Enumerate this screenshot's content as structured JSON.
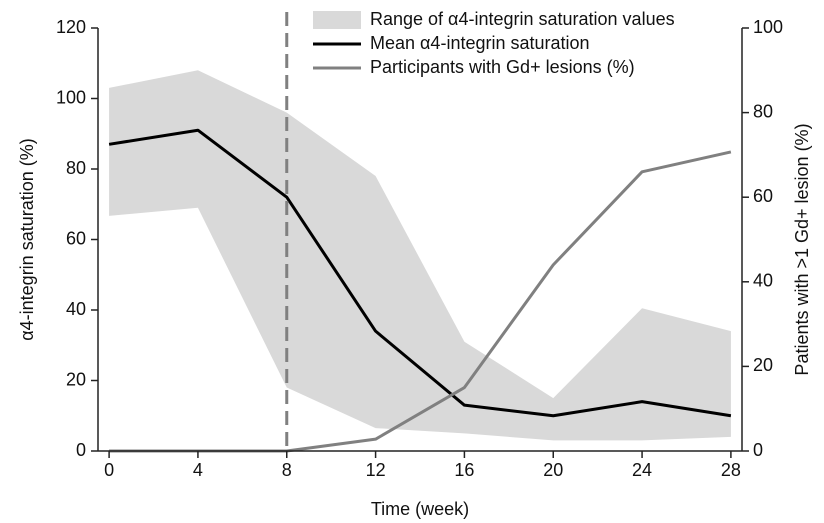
{
  "chart_data": {
    "type": "line",
    "x_label": "Time (week)",
    "y_label": "α4-integrin saturation (%)",
    "y2_label": "Patients with >1 Gd+ lesion (%)",
    "x": [
      0,
      4,
      8,
      12,
      16,
      20,
      24,
      28
    ],
    "xlim": [
      -0.5,
      28.5
    ],
    "xticks": [
      0,
      4,
      8,
      12,
      16,
      20,
      24,
      28
    ],
    "ylim": [
      0,
      120
    ],
    "yticks": [
      0,
      20,
      40,
      60,
      80,
      100,
      120
    ],
    "y2lim": [
      0,
      100
    ],
    "y2ticks": [
      0,
      20,
      40,
      60,
      80,
      100
    ],
    "vline": {
      "x": 8,
      "color": "#808080"
    },
    "legend": "top",
    "series": [
      {
        "name": "Range of α4-integrin saturation values",
        "color": "#d9d9d9",
        "upper": [
          103,
          108,
          96,
          78,
          31,
          15,
          40.5,
          34
        ],
        "lower": [
          66.7,
          69,
          18,
          6.5,
          5,
          3,
          3,
          4
        ]
      },
      {
        "name": "Mean α4-integrin saturation",
        "color": "#000000",
        "values": [
          87,
          91,
          72,
          34,
          13,
          10,
          14,
          10
        ]
      },
      {
        "name": "Participants with Gd+ lesions (%)",
        "color": "#808080",
        "axis": "y2",
        "values": [
          0,
          0,
          0,
          2.8,
          15,
          44,
          66,
          70.7
        ]
      }
    ]
  }
}
